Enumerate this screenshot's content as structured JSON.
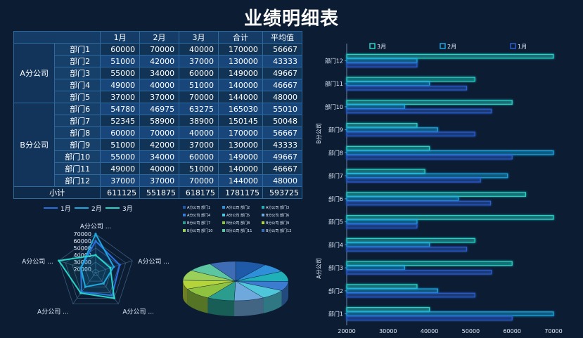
{
  "page": {
    "title": "业绩明细表"
  },
  "table": {
    "headers": [
      "",
      "",
      "1月",
      "2月",
      "3月",
      "合计",
      "平均值"
    ],
    "groups": [
      {
        "name": "A分公司",
        "rows": [
          {
            "dept": "部门1",
            "m1": "60000",
            "m2": "70000",
            "m3": "40000",
            "sum": "170000",
            "avg": "56667"
          },
          {
            "dept": "部门2",
            "m1": "51000",
            "m2": "42000",
            "m3": "37000",
            "sum": "130000",
            "avg": "43333"
          },
          {
            "dept": "部门3",
            "m1": "55000",
            "m2": "34000",
            "m3": "60000",
            "sum": "149000",
            "avg": "49667"
          },
          {
            "dept": "部门4",
            "m1": "49000",
            "m2": "40000",
            "m3": "51000",
            "sum": "140000",
            "avg": "46667"
          },
          {
            "dept": "部门5",
            "m1": "37000",
            "m2": "37000",
            "m3": "70000",
            "sum": "144000",
            "avg": "48000"
          }
        ]
      },
      {
        "name": "B分公司",
        "rows": [
          {
            "dept": "部门6",
            "m1": "54780",
            "m2": "46975",
            "m3": "63275",
            "sum": "165030",
            "avg": "55010"
          },
          {
            "dept": "部门7",
            "m1": "52345",
            "m2": "58900",
            "m3": "38900",
            "sum": "150145",
            "avg": "50048"
          },
          {
            "dept": "部门8",
            "m1": "60000",
            "m2": "70000",
            "m3": "40000",
            "sum": "170000",
            "avg": "56667"
          },
          {
            "dept": "部门9",
            "m1": "51000",
            "m2": "42000",
            "m3": "37000",
            "sum": "130000",
            "avg": "43333"
          },
          {
            "dept": "部门10",
            "m1": "55000",
            "m2": "34000",
            "m3": "60000",
            "sum": "149000",
            "avg": "49667"
          },
          {
            "dept": "部门11",
            "m1": "49000",
            "m2": "40000",
            "m3": "51000",
            "sum": "140000",
            "avg": "46667"
          },
          {
            "dept": "部门12",
            "m1": "37000",
            "m2": "37000",
            "m3": "70000",
            "sum": "144000",
            "avg": "48000"
          }
        ]
      }
    ],
    "total": {
      "label": "小计",
      "m1": "611125",
      "m2": "551875",
      "m3": "618175",
      "sum": "1781175",
      "avg": "593725"
    }
  },
  "chart_data": [
    {
      "type": "radar",
      "legend": [
        "1月",
        "2月",
        "3月"
      ],
      "legend_position": "top",
      "axis_ticks": [
        "20000",
        "30000",
        "40000",
        "50000",
        "60000",
        "70000"
      ],
      "axis_labels": [
        "A分公司 ...",
        "A分公司 ...",
        "A分公司 ...",
        "A分公司 ...",
        "A分公司 ..."
      ],
      "ylim": [
        15000,
        70000
      ],
      "series": [
        {
          "name": "1月",
          "values": [
            60000,
            51000,
            55000,
            49000,
            37000
          ]
        },
        {
          "name": "2月",
          "values": [
            70000,
            42000,
            34000,
            40000,
            37000
          ]
        },
        {
          "name": "3月",
          "values": [
            40000,
            37000,
            60000,
            51000,
            70000
          ]
        }
      ]
    },
    {
      "type": "pie",
      "style": "3d",
      "legend": [
        "A分公司 部门1",
        "A分公司 部门2",
        "A分公司 部门3",
        "A分公司 部门4",
        "A分公司 部门5",
        "B分公司 部门6",
        "B分公司 部门7",
        "B分公司 部门8",
        "B分公司 部门9",
        "B分公司 部门10",
        "B分公司 部门11",
        "B分公司 部门12"
      ],
      "legend_position": "top",
      "values": [
        170000,
        130000,
        149000,
        140000,
        144000,
        165030,
        150145,
        170000,
        130000,
        149000,
        140000,
        144000
      ],
      "colors": [
        "#1e5aa8",
        "#2f8fd8",
        "#1fb0b8",
        "#3b7bd0",
        "#4fc6d9",
        "#6fa8dc",
        "#2a9d8f",
        "#8fc23f",
        "#b5d43b",
        "#9ad05a",
        "#5cc6a0",
        "#3e6db5"
      ]
    },
    {
      "type": "bar",
      "orientation": "horizontal",
      "categories": [
        "部门1",
        "部门2",
        "部门3",
        "部门4",
        "部门5",
        "部门6",
        "部门7",
        "部门8",
        "部门9",
        "部门10",
        "部门11",
        "部门12"
      ],
      "group_labels": [
        "A分公司",
        "B分公司"
      ],
      "series": [
        {
          "name": "3月",
          "values": [
            40000,
            37000,
            60000,
            51000,
            70000,
            63275,
            38900,
            40000,
            37000,
            60000,
            51000,
            70000
          ]
        },
        {
          "name": "2月",
          "values": [
            70000,
            42000,
            34000,
            40000,
            37000,
            46975,
            58900,
            70000,
            42000,
            34000,
            40000,
            37000
          ]
        },
        {
          "name": "1月",
          "values": [
            60000,
            51000,
            55000,
            49000,
            37000,
            54780,
            52345,
            60000,
            51000,
            55000,
            49000,
            37000
          ]
        }
      ],
      "xlim": [
        20000,
        70000
      ],
      "x_ticks": [
        "20000",
        "30000",
        "40000",
        "50000",
        "60000",
        "70000"
      ],
      "legend_position": "top",
      "colors": {
        "3月": "#27d4c8",
        "2月": "#1ea7e0",
        "1月": "#2c5fd0"
      }
    }
  ]
}
